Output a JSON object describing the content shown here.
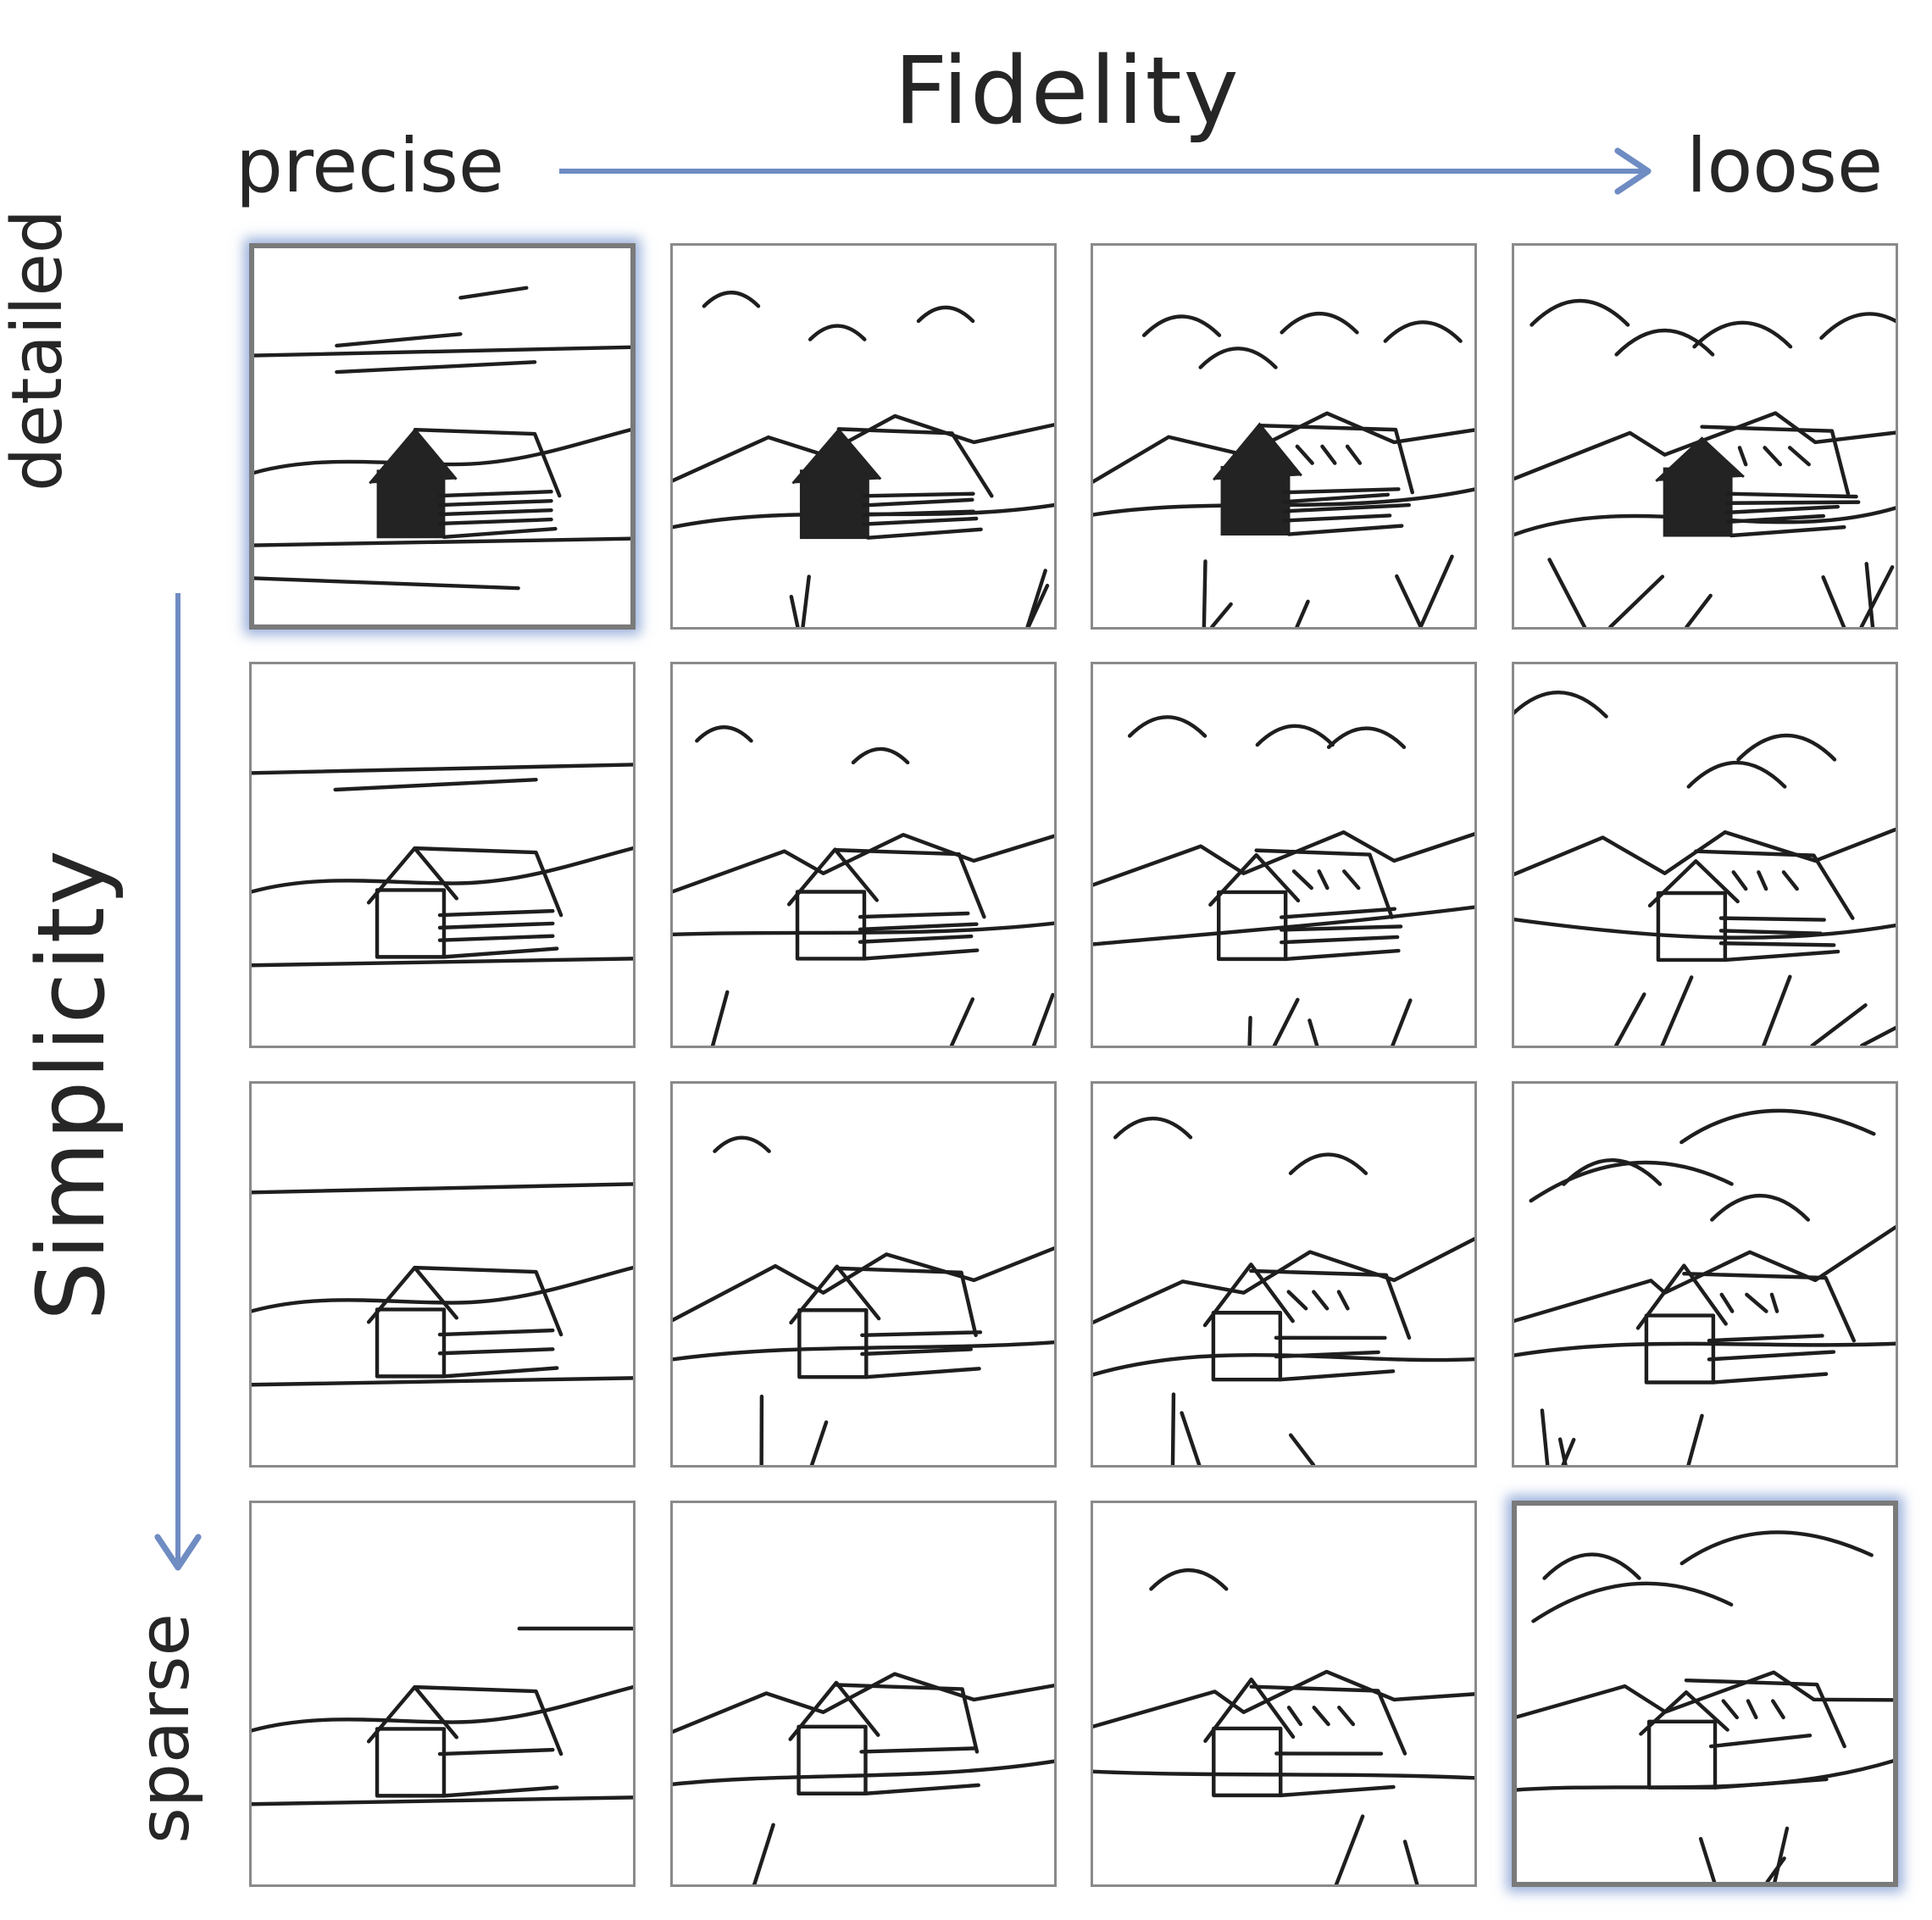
{
  "axes": {
    "x_title": "Fidelity",
    "x_min_label": "precise",
    "x_max_label": "loose",
    "y_title": "Simplicity",
    "y_min_label": "detailed",
    "y_max_label": "sparse",
    "arrow_color": "#6f8cc3"
  },
  "grid": {
    "rows": 4,
    "cols": 4,
    "subject": "house-sketch",
    "highlighted": [
      [
        0,
        0
      ],
      [
        3,
        3
      ]
    ],
    "highlight_color": "#8aa3d6",
    "cells": [
      {
        "row": 0,
        "col": 0,
        "fidelity": 0,
        "detail": 3
      },
      {
        "row": 0,
        "col": 1,
        "fidelity": 1,
        "detail": 3
      },
      {
        "row": 0,
        "col": 2,
        "fidelity": 2,
        "detail": 3
      },
      {
        "row": 0,
        "col": 3,
        "fidelity": 3,
        "detail": 3
      },
      {
        "row": 1,
        "col": 0,
        "fidelity": 0,
        "detail": 2
      },
      {
        "row": 1,
        "col": 1,
        "fidelity": 1,
        "detail": 2
      },
      {
        "row": 1,
        "col": 2,
        "fidelity": 2,
        "detail": 2
      },
      {
        "row": 1,
        "col": 3,
        "fidelity": 3,
        "detail": 2
      },
      {
        "row": 2,
        "col": 0,
        "fidelity": 0,
        "detail": 1
      },
      {
        "row": 2,
        "col": 1,
        "fidelity": 1,
        "detail": 1
      },
      {
        "row": 2,
        "col": 2,
        "fidelity": 2,
        "detail": 1
      },
      {
        "row": 2,
        "col": 3,
        "fidelity": 3,
        "detail": 1
      },
      {
        "row": 3,
        "col": 0,
        "fidelity": 0,
        "detail": 0
      },
      {
        "row": 3,
        "col": 1,
        "fidelity": 1,
        "detail": 0
      },
      {
        "row": 3,
        "col": 2,
        "fidelity": 2,
        "detail": 0
      },
      {
        "row": 3,
        "col": 3,
        "fidelity": 3,
        "detail": 0
      }
    ]
  }
}
